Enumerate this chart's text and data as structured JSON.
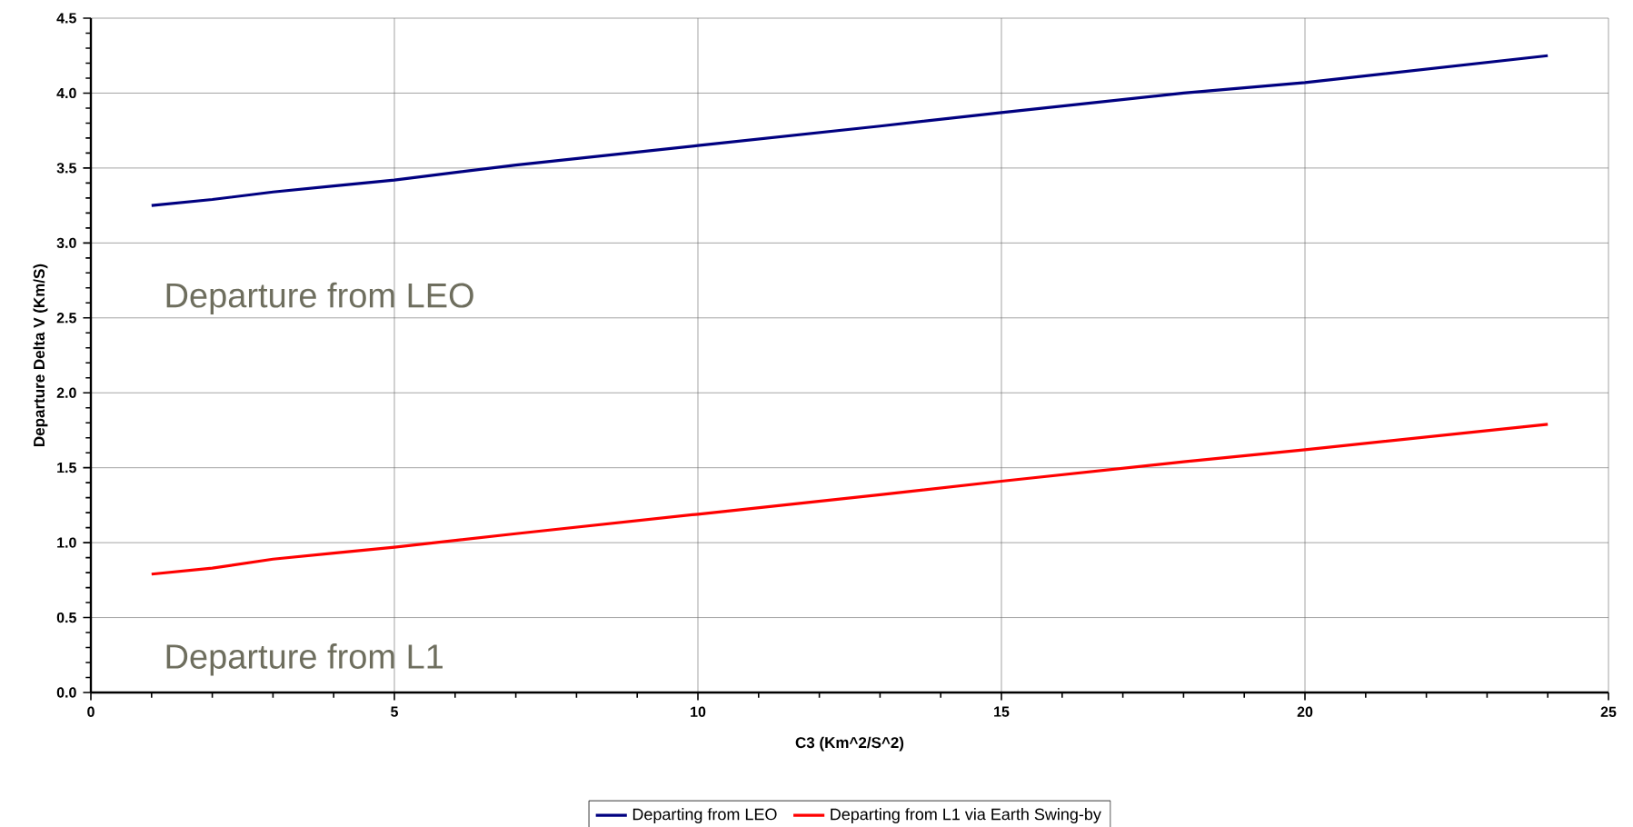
{
  "chart_data": {
    "type": "line",
    "xlabel": "C3 (Km^2/S^2)",
    "ylabel": "Departure Delta V (Km/S)",
    "x": [
      1,
      2,
      3,
      4,
      5,
      7,
      10,
      13,
      15,
      18,
      20,
      24
    ],
    "series": [
      {
        "name": "Departing from LEO",
        "color": "#000080",
        "values": [
          3.25,
          3.29,
          3.34,
          3.38,
          3.42,
          3.52,
          3.65,
          3.78,
          3.87,
          4.0,
          4.07,
          4.25
        ]
      },
      {
        "name": "Departing from L1 via Earth Swing-by",
        "color": "#ff0000",
        "values": [
          0.79,
          0.83,
          0.89,
          0.93,
          0.97,
          1.06,
          1.19,
          1.32,
          1.41,
          1.54,
          1.62,
          1.79
        ]
      }
    ],
    "xlim": [
      0,
      25
    ],
    "xticks": [
      0,
      5,
      10,
      15,
      20,
      25
    ],
    "ylim": [
      0,
      4.5
    ],
    "yticks": [
      {
        "value": 0,
        "label": "0.0"
      },
      {
        "value": 0.5,
        "label": "0.5"
      },
      {
        "value": 1,
        "label": "1.0"
      },
      {
        "value": 1.5,
        "label": "1.5"
      },
      {
        "value": 2,
        "label": "2.0"
      },
      {
        "value": 2.5,
        "label": "2.5"
      },
      {
        "value": 3,
        "label": "3.0"
      },
      {
        "value": 3.5,
        "label": "3.5"
      },
      {
        "value": 4,
        "label": "4.0"
      },
      {
        "value": 4.5,
        "label": "4.5"
      }
    ],
    "annotations": [
      "Departure from LEO",
      "Departure from L1"
    ],
    "grid": true,
    "legend": "bottom",
    "marker": "none",
    "line_style": "solid"
  }
}
